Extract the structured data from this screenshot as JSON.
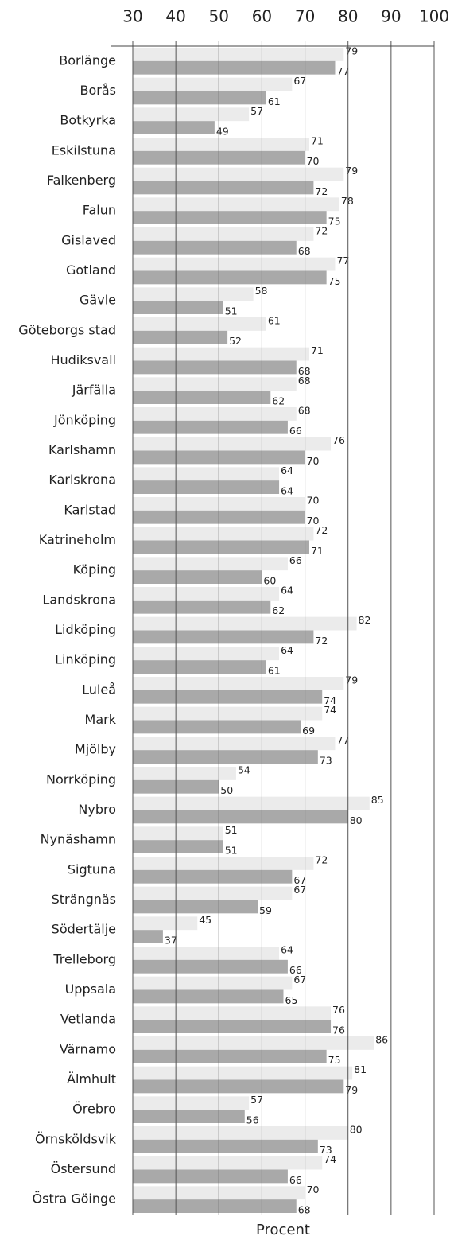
{
  "chart_data": {
    "type": "barh",
    "x_label": "Procent",
    "categories": [
      "Borlänge",
      "Borås",
      "Botkyrka",
      "Eskilstuna",
      "Falkenberg",
      "Falun",
      "Gislaved",
      "Gotland",
      "Gävle",
      "Göteborgs stad",
      "Hudiksvall",
      "Järfälla",
      "Jönköping",
      "Karlshamn",
      "Karlskrona",
      "Karlstad",
      "Katrineholm",
      "Köping",
      "Landskrona",
      "Lidköping",
      "Linköping",
      "Luleå",
      "Mark",
      "Mjölby",
      "Norrköping",
      "Nybro",
      "Nynäshamn",
      "Sigtuna",
      "Strängnäs",
      "Södertälje",
      "Trelleborg",
      "Uppsala",
      "Vetlanda",
      "Värnamo",
      "Älmhult",
      "Örebro",
      "Örnsköldsvik",
      "Östersund",
      "Östra Göinge"
    ],
    "series": [
      {
        "color": "#ebebeb",
        "values": [
          79,
          67,
          57,
          71,
          79,
          78,
          72,
          77,
          58,
          61,
          71,
          68,
          68,
          76,
          64,
          70,
          72,
          66,
          64,
          82,
          64,
          79,
          74,
          77,
          54,
          85,
          51,
          72,
          67,
          45,
          64,
          67,
          76,
          86,
          81,
          57,
          80,
          74,
          70
        ]
      },
      {
        "color": "#a9a9a9",
        "values": [
          77,
          61,
          49,
          70,
          72,
          75,
          68,
          75,
          51,
          52,
          68,
          62,
          66,
          70,
          64,
          70,
          71,
          60,
          62,
          72,
          61,
          74,
          69,
          73,
          50,
          80,
          51,
          67,
          59,
          37,
          66,
          65,
          76,
          75,
          79,
          56,
          73,
          66,
          68
        ]
      }
    ],
    "xlim": [
      30,
      100
    ],
    "xticks": [
      30,
      40,
      50,
      60,
      70,
      80,
      90,
      100
    ],
    "grid": true
  }
}
